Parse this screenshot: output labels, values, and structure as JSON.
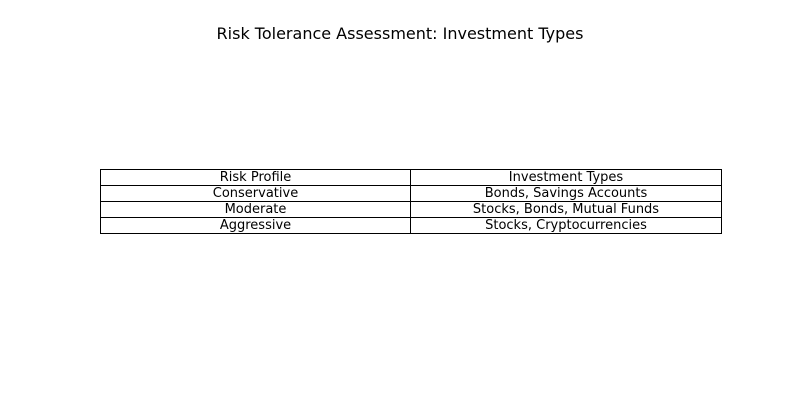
{
  "chart_data": {
    "type": "table",
    "title": "Risk Tolerance Assessment: Investment Types",
    "columns": [
      "Risk Profile",
      "Investment Types"
    ],
    "rows": [
      [
        "Conservative",
        "Bonds, Savings Accounts"
      ],
      [
        "Moderate",
        "Stocks, Bonds, Mutual Funds"
      ],
      [
        "Aggressive",
        "Stocks, Cryptocurrencies"
      ]
    ],
    "grid": true
  },
  "colors": {
    "background": "#ffffff",
    "text": "#000000",
    "cell_border": "#000000"
  }
}
